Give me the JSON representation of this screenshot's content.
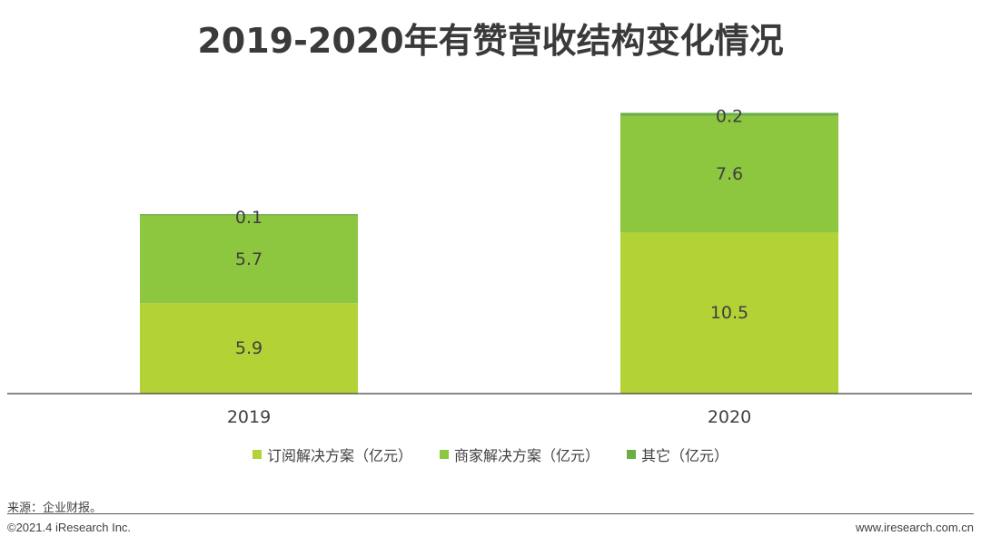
{
  "chart_data": {
    "type": "bar",
    "stacked": true,
    "title": "2019-2020年有赞营收结构变化情况",
    "categories": [
      "2019",
      "2020"
    ],
    "series": [
      {
        "name": "订阅解决方案（亿元）",
        "values": [
          5.9,
          10.5
        ],
        "color": "#b2d235"
      },
      {
        "name": "商家解决方案（亿元）",
        "values": [
          5.7,
          7.6
        ],
        "color": "#8dc63f"
      },
      {
        "name": "其它（亿元）",
        "values": [
          0.1,
          0.2
        ],
        "color": "#6aae44"
      }
    ],
    "labels": [
      [
        "5.9",
        "10.5"
      ],
      [
        "5.7",
        "7.6"
      ],
      [
        "0.1",
        "0.2"
      ]
    ],
    "ylim": [
      0,
      18.8
    ],
    "xlabel": "",
    "ylabel": "",
    "legend": "bottom-center",
    "grid": false
  },
  "footer": {
    "source": "来源：企业财报。",
    "copyright": "©2021.4 iResearch Inc.",
    "site": "www.iresearch.com.cn"
  }
}
